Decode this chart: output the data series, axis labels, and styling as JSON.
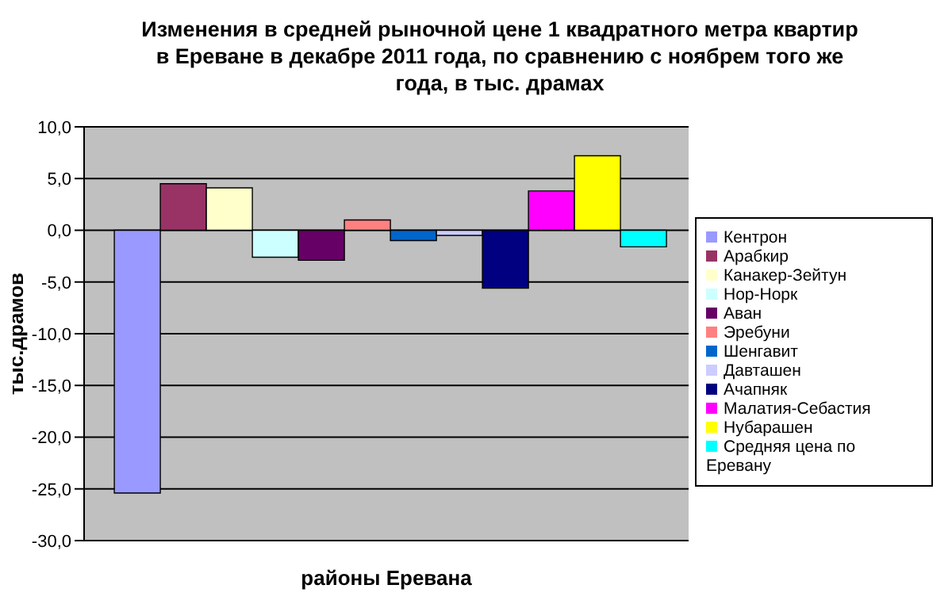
{
  "chart_data": {
    "type": "bar",
    "title": "Изменения в средней рыночной цене 1 квадратного метра квартир\nв Ереване в декабре 2011 года, по сравнению с ноябрем того же\nгода, в тыс. драмах",
    "xlabel": "районы Еревана",
    "ylabel": "тыс.драмов",
    "categories": [
      null
    ],
    "series": [
      {
        "name": "Кентрон",
        "color": "#9999ff",
        "values": [
          -25.4
        ]
      },
      {
        "name": "Арабкир",
        "color": "#993366",
        "values": [
          4.5
        ]
      },
      {
        "name": "Канакер-Зейтун",
        "color": "#ffffcc",
        "values": [
          4.1
        ]
      },
      {
        "name": "Нор-Норк",
        "color": "#ccffff",
        "values": [
          -2.6
        ]
      },
      {
        "name": "Аван",
        "color": "#660066",
        "values": [
          -2.9
        ]
      },
      {
        "name": "Эребуни",
        "color": "#ff8080",
        "values": [
          1.0
        ]
      },
      {
        "name": "Шенгавит",
        "color": "#0066cc",
        "values": [
          -1.0
        ]
      },
      {
        "name": "Давташен",
        "color": "#ccccff",
        "values": [
          -0.5
        ]
      },
      {
        "name": "Ачапняк",
        "color": "#000080",
        "values": [
          -5.6
        ]
      },
      {
        "name": "Малатия-Себастия",
        "color": "#ff00ff",
        "values": [
          3.8
        ]
      },
      {
        "name": "Нубарашен",
        "color": "#ffff00",
        "values": [
          7.2
        ]
      },
      {
        "name": "Средняя цена по Еревану",
        "color": "#00ffff",
        "values": [
          -1.6
        ]
      }
    ],
    "ylim": [
      -30,
      10
    ],
    "yticks": [
      {
        "value": -30,
        "label": "-30,0"
      },
      {
        "value": -25,
        "label": "-25,0"
      },
      {
        "value": -20,
        "label": "-20,0"
      },
      {
        "value": -15,
        "label": "-15,0"
      },
      {
        "value": -10,
        "label": "-10,0"
      },
      {
        "value": -5,
        "label": "-5,0"
      },
      {
        "value": 0,
        "label": "0,0"
      },
      {
        "value": 5,
        "label": "5,0"
      },
      {
        "value": 10,
        "label": "10,0"
      }
    ],
    "grid": "y",
    "legend": "right"
  }
}
